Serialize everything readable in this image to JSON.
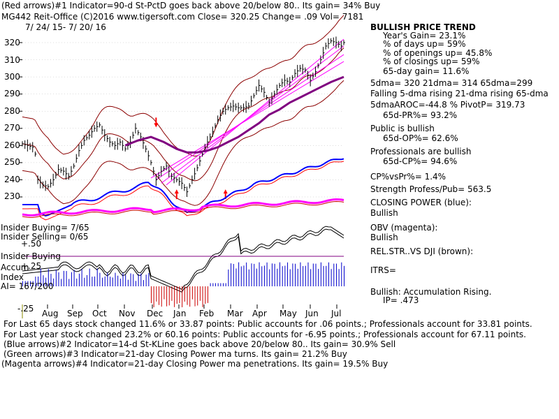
{
  "header": {
    "line1": "(Red arrows)#1 Indicator=90-d St-PctD goes back above 20/below 80.. Its gain= 34% Buy",
    "line2": "MG442   Reit-Office  (C)2016 www.tigersoft.com      Close=   320.25   Change=  .09 Vol=  7181",
    "line3": "7/ 24/ 15-  7/ 20/ 16"
  },
  "sidebar": {
    "s1": "BULLISH PRICE TREND",
    "s2": "Year's Gain= 23.1%",
    "s3": "% of days up= 59%",
    "s4": "% of openings up= 45.8%",
    "s5": "% of closings up= 59%",
    "s6": "65-day gain= 11.6%",
    "s7": "5dma= 320 21dma= 314 65dma=299",
    "s8": "Falling 5-dma rising 21-dma rising 65-dma",
    "s9": "5dmaAROC=-44.8 %  PivotP= 319.73",
    "s10": "65d-PR%= 93.2%",
    "s11": "Public is bullish",
    "s12": "65d-OP%= 62.6%",
    "s13": "Professionals are bullish",
    "s14": "65d-CP%= 94.6%",
    "s15": "CP%vsPr%=  1.4%",
    "s16": "Strength Profess/Pub= 563.5",
    "s17": "CLOSING POWER (blue):",
    "s18": "Bullish",
    "s19": "OBV (magenta):",
    "s20": "Bullish",
    "s21": "REL.STR..VS DJI (brown):",
    "s22": "ITRS=",
    "s23": "Bullish: Accumulation Rising.",
    "s24": "IP=  .473"
  },
  "insider": {
    "buying": "Insider Buying= 7/65",
    "selling": "Insider Selling= 0/65",
    "p50": "+.50",
    "l1": "Insider Buying",
    "l2": "Accum",
    "p25": "+.25",
    "l3": "Index",
    "ai": "AI= 167/200",
    "m25": "-.25"
  },
  "footer": {
    "f1": "For Last 65 days stock changed  11.6% or  33.87 points:  Public accounts for  .06 points.;  Professionals account for  33.81 points.",
    "f2": "For Last year stock changed  23.2% or  60.16 points:  Public accounts for  -6.95 points.;  Professionals account for  67.11 points.",
    "f3": "(Blue arrows)#2 Indicator=14-d St-KLine goes back above 20/below 80.. Its gain= 30.9% Sell",
    "f4": "(Green arrows)#3 Indicator=21-day Closing Power ma turns. Its gain= 21.2% Buy",
    "f5": "(Magenta arrows)#4 Indicator=21-day Closing Power ma penetrations. Its gain= 19.5% Buy"
  },
  "colors": {
    "price": "#000000",
    "ma65": "#800080",
    "envelope": "#8b0000",
    "trendlines": "#ff00ff",
    "closing_power": "#0000ff",
    "obv": "#ff00ff",
    "ma_red": "#ff0000",
    "accum_pos": "#0000cc",
    "accum_neg": "#cc0000"
  },
  "chart_data": {
    "type": "line",
    "title": "MG442 Reit-Office",
    "date_range": "7/24/15 - 7/20/16",
    "x_tick_labels": [
      "Aug",
      "Sep",
      "Oct",
      "Nov",
      "Dec",
      "Jan",
      "Feb",
      "Mar",
      "Apr",
      "May",
      "Jun",
      "Jul"
    ],
    "y_ticks": [
      230,
      240,
      250,
      260,
      270,
      280,
      290,
      300,
      310,
      320
    ],
    "ylim": [
      224,
      326
    ],
    "series": [
      {
        "name": "Price",
        "x": [
          0,
          4,
          8,
          10,
          12,
          16,
          20,
          25,
          28,
          32,
          36,
          40,
          44,
          48,
          52,
          56,
          60,
          64,
          68,
          72,
          76,
          80,
          84,
          88,
          92,
          96,
          100,
          104,
          108,
          112,
          116,
          120,
          124,
          128,
          132,
          136,
          140,
          144,
          148,
          152,
          156,
          160,
          164,
          168,
          172,
          176,
          180,
          184,
          188,
          192,
          196,
          200,
          204,
          208,
          212,
          216,
          220,
          224,
          228,
          232,
          236,
          240,
          244,
          248,
          250
        ],
        "values": [
          261,
          260,
          259,
          255,
          240,
          237,
          236,
          241,
          246,
          245,
          242,
          248,
          257,
          263,
          266,
          270,
          272,
          266,
          262,
          260,
          262,
          258,
          262,
          270,
          265,
          258,
          250,
          240,
          245,
          248,
          242,
          240,
          238,
          233,
          240,
          247,
          255,
          262,
          268,
          275,
          280,
          282,
          283,
          282,
          282,
          283,
          289,
          295,
          291,
          285,
          290,
          295,
          298,
          297,
          302,
          305,
          304,
          298,
          303,
          310,
          318,
          321,
          320,
          318,
          320
        ]
      },
      {
        "name": "65-dma",
        "x": [
          80,
          90,
          100,
          110,
          120,
          128,
          136,
          144,
          152,
          160,
          168,
          176,
          184,
          192,
          200,
          208,
          216,
          224,
          232,
          240,
          250
        ],
        "values": [
          260,
          263,
          265,
          262,
          258,
          256,
          256,
          257,
          259,
          262,
          265,
          269,
          273,
          278,
          281,
          285,
          288,
          291,
          294,
          297,
          300
        ]
      }
    ],
    "x_range": [
      0,
      250
    ]
  }
}
